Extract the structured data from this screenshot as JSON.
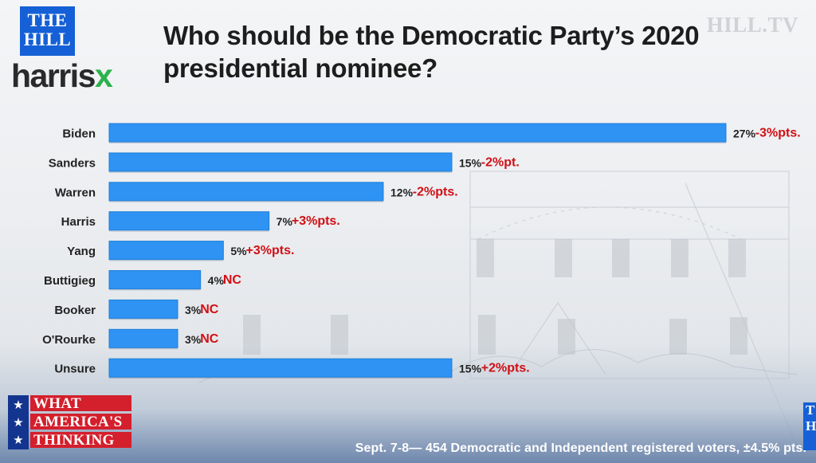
{
  "branding": {
    "the_hill_line1": "THE",
    "the_hill_line2": "HILL",
    "harris": "harris",
    "x": "x",
    "hill_tv": "HILL.TV",
    "what_americas_thinking": [
      "WHAT",
      "AMERICA'S",
      "THINKING"
    ],
    "stars": [
      "★",
      "★",
      "★"
    ],
    "corner": [
      "T",
      "H"
    ]
  },
  "source_note": "Sept. 7-8— 454 Democratic and Independent registered voters, ±4.5% pts.",
  "colors": {
    "bar": "#2e93f3",
    "bar_edge": "#1f7fd9",
    "change": "#d10f14",
    "label": "#222222",
    "accent_blue": "#1560d6",
    "accent_green": "#2bb24c"
  },
  "chart_data": {
    "type": "bar",
    "orientation": "horizontal",
    "title": "Who should be the Democratic Party’s 2020 presidential nominee?",
    "categories": [
      "Biden",
      "Sanders",
      "Warren",
      "Harris",
      "Yang",
      "Buttigieg",
      "Booker",
      "O'Rourke",
      "Unsure"
    ],
    "values": [
      27,
      15,
      12,
      7,
      5,
      4,
      3,
      3,
      15
    ],
    "value_labels": [
      "27%",
      "15%",
      "12%",
      "7%",
      "5%",
      "4%",
      "3%",
      "3%",
      "15%"
    ],
    "change_labels": [
      "-3%pts.",
      "-2%pt.",
      "-2%pts.",
      "+3%pts.",
      "+3%pts.",
      "NC",
      "NC",
      "NC",
      "+2%pts."
    ],
    "xlim": [
      0,
      27
    ],
    "grid": false,
    "legend": "none"
  }
}
